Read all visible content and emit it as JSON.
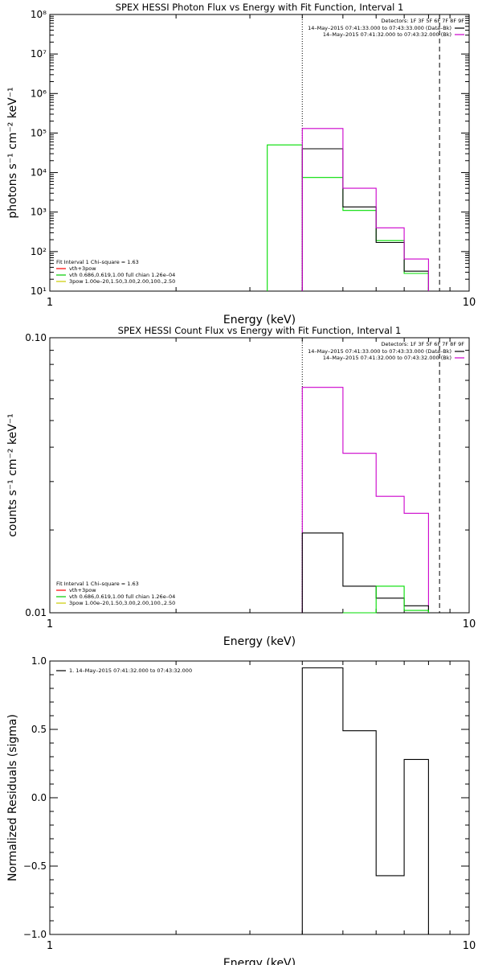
{
  "chart_data": [
    {
      "type": "line",
      "title": "SPEX HESSI Photon Flux vs Energy with Fit Function, Interval 1",
      "xlabel": "Energy (keV)",
      "ylabel": "photons s⁻¹ cm⁻² keV⁻¹",
      "xscale": "log",
      "yscale": "log",
      "xlim": [
        1,
        10
      ],
      "ylim": [
        10,
        100000000
      ],
      "x_ticks": [
        {
          "v": 1,
          "label": "1"
        },
        {
          "v": 10,
          "label": "10"
        }
      ],
      "y_ticks": [
        {
          "v": 10,
          "label": "10¹"
        },
        {
          "v": 100,
          "label": "10²"
        },
        {
          "v": 1000,
          "label": "10³"
        },
        {
          "v": 10000,
          "label": "10⁴"
        },
        {
          "v": 100000,
          "label": "10⁵"
        },
        {
          "v": 1000000,
          "label": "10⁶"
        },
        {
          "v": 10000000,
          "label": "10⁷"
        },
        {
          "v": 100000000,
          "label": "10⁸"
        }
      ],
      "vlines": [
        {
          "x": 4.0,
          "style": "dotted"
        },
        {
          "x": 8.5,
          "style": "dashed"
        }
      ],
      "legend_right": {
        "title": "Detectors: 1F 3F 5F 6F 7F 8F 9F",
        "entries": [
          {
            "text": "14–May–2015 07:41:33.000 to 07:43:33.000 (Data–Bk)",
            "color": "#000000"
          },
          {
            "text": "14–May–2015 07:41:32.000 to 07:43:32.000 (Bk)",
            "color": "#cc00cc"
          }
        ]
      },
      "legend_left": {
        "title": "Fit Interval 1   Chi–square = 1.63",
        "entries": [
          {
            "text": "vth+3pow",
            "color": "#ff0000"
          },
          {
            "text": "vth 0.686,0.619,1.00  full chian 1.26e–04",
            "color": "#00cc00"
          },
          {
            "text": "3pow 1.00e–20,1.50,3.00,2.00,100.,2.50",
            "color": "#cccc00"
          }
        ]
      },
      "series": [
        {
          "color": "#00dd00",
          "bins": [
            [
              3.3,
              4.0,
              50000
            ],
            [
              4.0,
              5.0,
              7500
            ],
            [
              5.0,
              6.0,
              1100
            ],
            [
              6.0,
              7.0,
              190
            ],
            [
              7.0,
              8.0,
              28
            ]
          ]
        },
        {
          "color": "#000000",
          "bins": [
            [
              4.0,
              5.0,
              40000
            ],
            [
              5.0,
              6.0,
              1350
            ],
            [
              6.0,
              7.0,
              170
            ],
            [
              7.0,
              8.0,
              32
            ]
          ]
        },
        {
          "color": "#cc00cc",
          "bins": [
            [
              4.0,
              5.0,
              130000
            ],
            [
              5.0,
              6.0,
              4000
            ],
            [
              6.0,
              7.0,
              400
            ],
            [
              7.0,
              8.0,
              65
            ]
          ]
        }
      ]
    },
    {
      "type": "line",
      "title": "SPEX HESSI Count Flux vs Energy with Fit Function, Interval 1",
      "xlabel": "Energy (keV)",
      "ylabel": "counts s⁻¹ cm⁻² keV⁻¹",
      "xscale": "log",
      "yscale": "log",
      "xlim": [
        1,
        10
      ],
      "ylim": [
        0.01,
        0.1
      ],
      "x_ticks": [
        {
          "v": 1,
          "label": "1"
        },
        {
          "v": 10,
          "label": "10"
        }
      ],
      "y_ticks": [
        {
          "v": 0.01,
          "label": "0.01"
        },
        {
          "v": 0.1,
          "label": "0.10"
        }
      ],
      "vlines": [
        {
          "x": 4.0,
          "style": "dotted"
        },
        {
          "x": 8.5,
          "style": "dashed"
        }
      ],
      "legend_right": {
        "title": "Detectors: 1F 3F 5F 6F 7F 8F 9F",
        "entries": [
          {
            "text": "14–May–2015 07:41:33.000 to 07:43:33.000 (Data–Bk)",
            "color": "#000000"
          },
          {
            "text": "14–May–2015 07:41:32.000 to 07:43:32.000 (Bk)",
            "color": "#cc00cc"
          }
        ]
      },
      "legend_left": {
        "title": "Fit Interval 1   Chi–square = 1.63",
        "entries": [
          {
            "text": "vth+3pow",
            "color": "#ff0000"
          },
          {
            "text": "vth 0.686,0.619,1.00  full chian 1.26e–04",
            "color": "#00cc00"
          },
          {
            "text": "3pow 1.00e–20,1.50,3.00,2.00,100.,2.50",
            "color": "#cccc00"
          }
        ]
      },
      "series": [
        {
          "color": "#cc00cc",
          "bins": [
            [
              4.0,
              5.0,
              0.066
            ],
            [
              5.0,
              6.0,
              0.038
            ],
            [
              6.0,
              7.0,
              0.0265
            ],
            [
              7.0,
              8.0,
              0.023
            ]
          ]
        },
        {
          "color": "#000000",
          "bins": [
            [
              4.0,
              5.0,
              0.0195
            ],
            [
              5.0,
              6.0,
              0.0125
            ],
            [
              6.0,
              7.0,
              0.0113
            ],
            [
              7.0,
              8.0,
              0.0106
            ]
          ]
        },
        {
          "color": "#00dd00",
          "bins": [
            [
              5.0,
              6.0,
              0.01
            ],
            [
              6.0,
              7.0,
              0.0125
            ],
            [
              7.0,
              8.0,
              0.0102
            ]
          ]
        }
      ]
    },
    {
      "type": "line",
      "title": "",
      "xlabel": "Energy (keV)",
      "ylabel": "Normalized Residuals (sigma)",
      "xscale": "log",
      "yscale": "linear",
      "xlim": [
        1,
        10
      ],
      "ylim": [
        -1.0,
        1.0
      ],
      "x_ticks": [
        {
          "v": 1,
          "label": "1"
        },
        {
          "v": 10,
          "label": "10"
        }
      ],
      "y_ticks": [
        {
          "v": 1.0,
          "label": "1.0"
        },
        {
          "v": 0.5,
          "label": "0.5"
        },
        {
          "v": 0.0,
          "label": "0.0"
        },
        {
          "v": -0.5,
          "label": "−0.5"
        },
        {
          "v": -1.0,
          "label": "−1.0"
        }
      ],
      "legend_left": {
        "title": "",
        "entries": [
          {
            "text": "1. 14–May–2015 07:41:32.000 to 07:43:32.000",
            "color": "#000000"
          }
        ]
      },
      "series": [
        {
          "color": "#000000",
          "bins": [
            [
              4.0,
              5.0,
              0.95
            ],
            [
              5.0,
              6.0,
              0.49
            ],
            [
              6.0,
              7.0,
              -0.57
            ],
            [
              7.0,
              8.0,
              0.28
            ]
          ]
        }
      ]
    }
  ]
}
